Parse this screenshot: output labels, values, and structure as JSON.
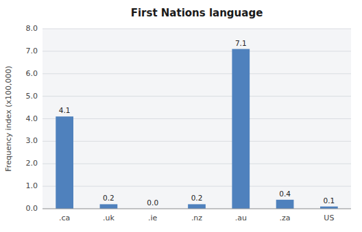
{
  "chart_data": {
    "type": "bar",
    "title": "First Nations language",
    "categories": [
      ".ca",
      ".uk",
      ".ie",
      ".nz",
      ".au",
      ".za",
      "US"
    ],
    "values": [
      4.1,
      0.2,
      0.0,
      0.2,
      7.1,
      0.4,
      0.1
    ],
    "value_labels": [
      "4.1",
      "0.2",
      "0.0",
      "0.2",
      "7.1",
      "0.4",
      "0.1"
    ],
    "data_labels": true,
    "color": "#4f81bd",
    "ylabel": "Frequency index (x100,000)",
    "ylim": [
      0,
      8.0
    ],
    "yticks": [
      {
        "value": 0.0,
        "label": "0.0"
      },
      {
        "value": 1.0,
        "label": "1.0"
      },
      {
        "value": 2.0,
        "label": "2.0"
      },
      {
        "value": 3.0,
        "label": "3.0"
      },
      {
        "value": 4.0,
        "label": "4.0"
      },
      {
        "value": 5.0,
        "label": "5.0"
      },
      {
        "value": 6.0,
        "label": "6.0"
      },
      {
        "value": 7.0,
        "label": "7.0"
      },
      {
        "value": 8.0,
        "label": "8.0"
      }
    ],
    "grid": true
  }
}
